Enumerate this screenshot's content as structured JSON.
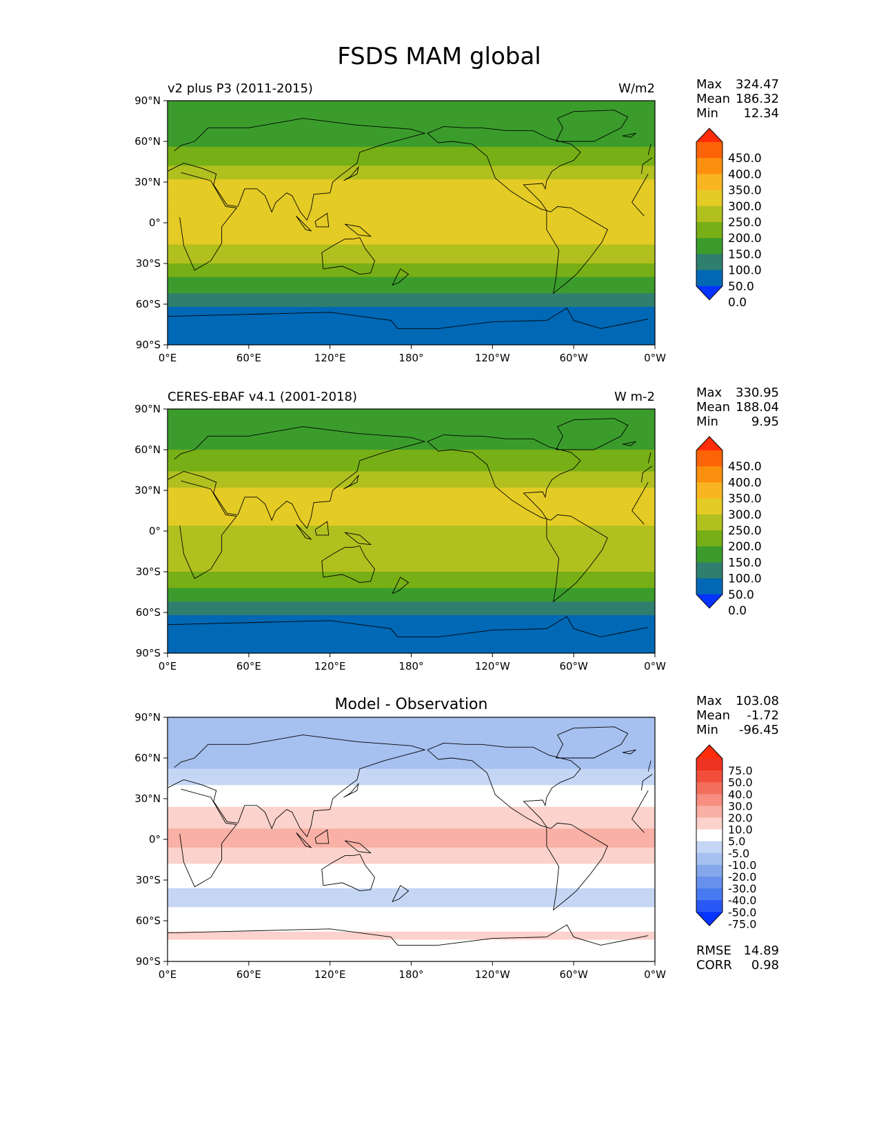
{
  "figure": {
    "title": "FSDS MAM global"
  },
  "chart_data": [
    {
      "type": "heatmap",
      "panel": "test",
      "title_left": "v2 plus P3 (2011-2015)",
      "title_center": "",
      "units": "W/m2",
      "stats": [
        {
          "label": "Max",
          "value": "324.47"
        },
        {
          "label": "Mean",
          "value": "186.32"
        },
        {
          "label": "Min",
          "value": "12.34"
        }
      ],
      "colorbar": {
        "levels": [
          "450.0",
          "400.0",
          "350.0",
          "300.0",
          "250.0",
          "200.0",
          "150.0",
          "100.0",
          "50.0",
          "0.0"
        ],
        "colors": [
          "#0533ff",
          "#0068b5",
          "#2f7f6e",
          "#3b9c2c",
          "#77af16",
          "#b1c01f",
          "#e4cb25",
          "#f9b521",
          "#fd8f0f",
          "#fd6307",
          "#ff2d0a"
        ],
        "extend": "both"
      },
      "x_ticks": [
        "0°E",
        "60°E",
        "120°E",
        "180°",
        "120°W",
        "60°W",
        "0°W"
      ],
      "y_ticks": [
        "90°N",
        "60°N",
        "30°N",
        "0°",
        "30°S",
        "60°S",
        "90°S"
      ],
      "zonal_profile": [
        {
          "lat": 90,
          "value": 130
        },
        {
          "lat": 75,
          "value": 120
        },
        {
          "lat": 60,
          "value": 140
        },
        {
          "lat": 45,
          "value": 185
        },
        {
          "lat": 30,
          "value": 260
        },
        {
          "lat": 15,
          "value": 275
        },
        {
          "lat": 0,
          "value": 250
        },
        {
          "lat": -15,
          "value": 250
        },
        {
          "lat": -30,
          "value": 200
        },
        {
          "lat": -45,
          "value": 130
        },
        {
          "lat": -55,
          "value": 85
        },
        {
          "lat": -65,
          "value": 40
        },
        {
          "lat": -90,
          "value": 20
        }
      ]
    },
    {
      "type": "heatmap",
      "panel": "reference",
      "title_left": "CERES-EBAF v4.1 (2001-2018)",
      "title_center": "",
      "units": "W m-2",
      "stats": [
        {
          "label": "Max",
          "value": "330.95"
        },
        {
          "label": "Mean",
          "value": "188.04"
        },
        {
          "label": "Min",
          "value": "9.95"
        }
      ],
      "colorbar": {
        "levels": [
          "450.0",
          "400.0",
          "350.0",
          "300.0",
          "250.0",
          "200.0",
          "150.0",
          "100.0",
          "50.0",
          "0.0"
        ],
        "colors": [
          "#0533ff",
          "#0068b5",
          "#2f7f6e",
          "#3b9c2c",
          "#77af16",
          "#b1c01f",
          "#e4cb25",
          "#f9b521",
          "#fd8f0f",
          "#fd6307",
          "#ff2d0a"
        ],
        "extend": "both"
      },
      "x_ticks": [
        "0°E",
        "60°E",
        "120°E",
        "180°",
        "120°W",
        "60°W",
        "0°W"
      ],
      "y_ticks": [
        "90°N",
        "60°N",
        "30°N",
        "0°",
        "30°S",
        "60°S",
        "90°S"
      ],
      "zonal_profile": [
        {
          "lat": 90,
          "value": 130
        },
        {
          "lat": 75,
          "value": 125
        },
        {
          "lat": 60,
          "value": 150
        },
        {
          "lat": 45,
          "value": 195
        },
        {
          "lat": 30,
          "value": 262
        },
        {
          "lat": 15,
          "value": 270
        },
        {
          "lat": 0,
          "value": 240
        },
        {
          "lat": -15,
          "value": 240
        },
        {
          "lat": -30,
          "value": 200
        },
        {
          "lat": -45,
          "value": 135
        },
        {
          "lat": -55,
          "value": 85
        },
        {
          "lat": -65,
          "value": 40
        },
        {
          "lat": -90,
          "value": 20
        }
      ]
    },
    {
      "type": "heatmap",
      "panel": "difference",
      "title_left": "",
      "title_center": "Model - Observation",
      "units": "",
      "stats": [
        {
          "label": "Max",
          "value": "103.08"
        },
        {
          "label": "Mean",
          "value": "-1.72"
        },
        {
          "label": "Min",
          "value": "-96.45"
        }
      ],
      "metrics": [
        {
          "label": "RMSE",
          "value": "14.89"
        },
        {
          "label": "CORR",
          "value": "0.98"
        }
      ],
      "colorbar": {
        "levels": [
          "75.0",
          "50.0",
          "40.0",
          "30.0",
          "20.0",
          "10.0",
          "5.0",
          "-5.0",
          "-10.0",
          "-20.0",
          "-30.0",
          "-40.0",
          "-50.0",
          "-75.0"
        ],
        "colors": [
          "#0533ff",
          "#2957f4",
          "#4779f0",
          "#6690ec",
          "#85a8ea",
          "#a6c0ef",
          "#c5d6f5",
          "#ffffff",
          "#fbd2cc",
          "#f9b0a5",
          "#f78e7f",
          "#f56e5c",
          "#f24e3c",
          "#ef3322",
          "#ff2d0a"
        ],
        "extend": "both"
      },
      "x_ticks": [
        "0°E",
        "60°E",
        "120°E",
        "180°",
        "120°W",
        "60°W",
        "0°W"
      ],
      "y_ticks": [
        "90°N",
        "60°N",
        "30°N",
        "0°",
        "30°S",
        "60°S",
        "90°S"
      ],
      "zonal_profile": [
        {
          "lat": 90,
          "value": -12
        },
        {
          "lat": 75,
          "value": -15
        },
        {
          "lat": 60,
          "value": -12
        },
        {
          "lat": 45,
          "value": -8
        },
        {
          "lat": 30,
          "value": 3
        },
        {
          "lat": 15,
          "value": 8
        },
        {
          "lat": 0,
          "value": 12
        },
        {
          "lat": -15,
          "value": 7
        },
        {
          "lat": -30,
          "value": -3
        },
        {
          "lat": -45,
          "value": -8
        },
        {
          "lat": -60,
          "value": 1
        },
        {
          "lat": -70,
          "value": 6
        },
        {
          "lat": -90,
          "value": 0
        }
      ]
    }
  ]
}
